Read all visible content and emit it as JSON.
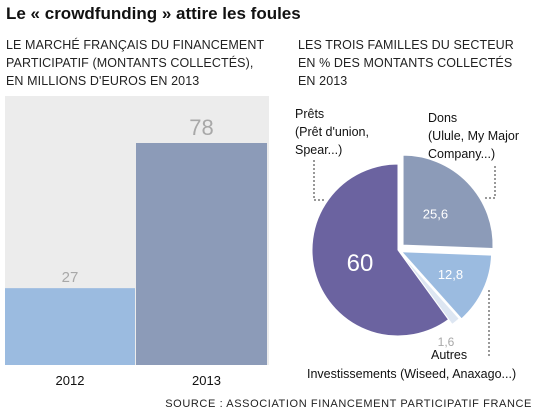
{
  "title": "Le « crowdfunding » attire les foules",
  "left_subtitle": [
    "LE MARCHÉ FRANÇAIS DU FINANCEMENT",
    "PARTICIPATIF (MONTANTS COLLECTÉS),",
    "EN MILLIONS D'EUROS EN 2013"
  ],
  "right_subtitle": [
    "LES TROIS FAMILLES DU SECTEUR",
    "EN % DES MONTANTS COLLECTÉS",
    "EN 2013"
  ],
  "source": "SOURCE : ASSOCIATION FINANCEMENT PARTICIPATIF FRANCE",
  "colors": {
    "bar_2012": "#9bbbe0",
    "bar_2013": "#8c9bb8",
    "panel": "#ececec",
    "investissements": "#6b63a0",
    "dons": "#8c9bb8",
    "prets": "#9bbbe0",
    "autres": "#dde6f2"
  },
  "chart_data": [
    {
      "type": "bar",
      "categories": [
        "2012",
        "2013"
      ],
      "values": [
        27,
        78
      ],
      "data_labels": [
        "27",
        "78"
      ],
      "title": "",
      "xlabel": "",
      "ylabel": "",
      "ylim": [
        0,
        78
      ]
    },
    {
      "type": "pie",
      "slices": [
        {
          "key": "dons",
          "label_lines": [
            "Dons",
            "(Ulule, My Major",
            "Company...)"
          ],
          "value": 25.6,
          "value_label": "25,6"
        },
        {
          "key": "prets",
          "label_lines": [
            "Prêts",
            "(Prêt d'union,",
            "Spear...)"
          ],
          "value": 12.8,
          "value_label": "12,8"
        },
        {
          "key": "autres",
          "label_lines": [
            "Autres"
          ],
          "value": 1.6,
          "value_label": "1,6"
        },
        {
          "key": "investissements",
          "label_lines": [
            "Investissements (Wiseed, Anaxago...)"
          ],
          "value": 60,
          "value_label": "60"
        }
      ]
    }
  ]
}
